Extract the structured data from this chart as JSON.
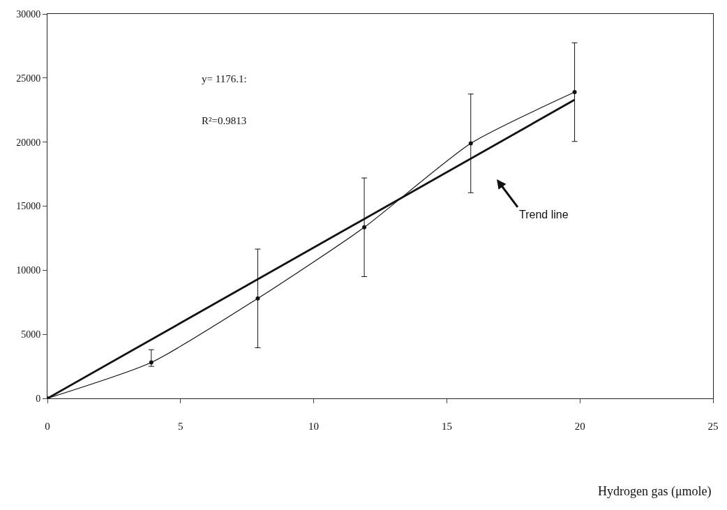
{
  "chart_data": {
    "type": "line",
    "xlabel": "Hydrogen gas (μmole)",
    "xlim": [
      0,
      25
    ],
    "xticks": [
      0,
      5,
      10,
      15,
      20,
      25
    ],
    "ylim": [
      0,
      30000
    ],
    "yticks": [
      0,
      5000,
      10000,
      15000,
      20000,
      25000,
      30000
    ],
    "series": [
      {
        "color": "#111111",
        "x": [
          0,
          3.9,
          7.9,
          11.9,
          15.9,
          19.8
        ],
        "values": [
          0,
          2800,
          7800,
          13350,
          19900,
          23900
        ],
        "errors": [
          null,
          [
            2500,
            3800
          ],
          3850,
          3850,
          3850,
          3850
        ],
        "marker": "circle",
        "line_style": "solid"
      },
      {
        "color": "#111111",
        "x": [
          0,
          19.8
        ],
        "values": [
          0,
          23300
        ],
        "marker": "none",
        "line_style": "solid"
      }
    ],
    "annotations": [
      "y= 1176.1:",
      "R²=0.9813",
      "Trend line"
    ]
  }
}
